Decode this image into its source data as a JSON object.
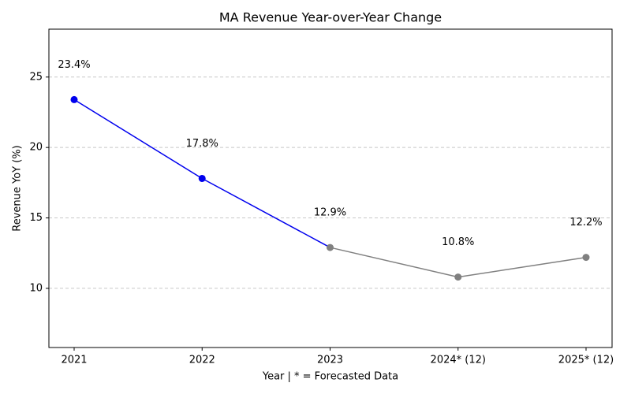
{
  "chart_data": {
    "type": "line",
    "title": "MA Revenue Year-over-Year Change",
    "x_label": "Year | * = Forecasted Data",
    "y_label": "Revenue YoY (%)",
    "categories": [
      "2021",
      "2022",
      "2023",
      "2024* (12)",
      "2025* (12)"
    ],
    "series": [
      {
        "color": "#0000ee",
        "values": [
          23.4,
          17.8,
          12.9,
          null,
          null
        ],
        "value_labels": [
          "23.4%",
          "17.8%",
          null,
          null,
          null
        ]
      },
      {
        "color": "#808080",
        "values": [
          null,
          null,
          12.9,
          10.8,
          12.2
        ],
        "value_labels": [
          null,
          null,
          "12.9%",
          "10.8%",
          "12.2%"
        ]
      }
    ],
    "ylim": [
      5.8,
      28.4
    ],
    "yticks": [
      10,
      15,
      20,
      25
    ],
    "grid": true
  }
}
